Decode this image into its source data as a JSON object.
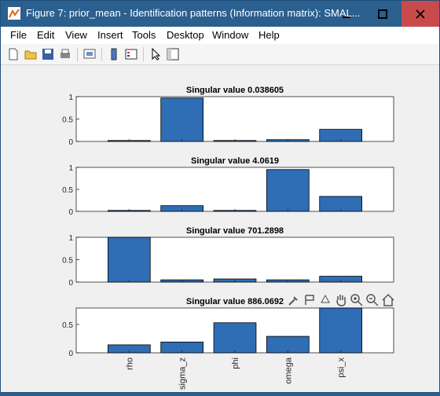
{
  "window": {
    "title": "Figure 7: prior_mean - Identification patterns (Information matrix): SMAL..."
  },
  "menu": [
    "File",
    "Edit",
    "View",
    "Insert",
    "Tools",
    "Desktop",
    "Window",
    "Help"
  ],
  "toolbar_icons": [
    "new-figure-icon",
    "open-file-icon",
    "save-icon",
    "print-icon",
    "link-plot-icon",
    "colorbar-icon",
    "legend-icon",
    "pointer-icon",
    "property-inspector-icon"
  ],
  "axes_toolbar_icons": [
    "brush-icon",
    "data-tips-icon",
    "rotate-icon",
    "pan-icon",
    "zoom-in-icon",
    "zoom-out-icon",
    "home-icon"
  ],
  "chart_data": [
    {
      "type": "bar",
      "title": "Singular value 0.038605",
      "categories": [
        "rho",
        "sigma_z",
        "phi",
        "omega",
        "psi_x"
      ],
      "values": [
        0.01,
        0.97,
        0.01,
        0.04,
        0.27
      ],
      "ylim": [
        0,
        1
      ],
      "yticks": [
        "0",
        "0.5",
        "1"
      ]
    },
    {
      "type": "bar",
      "title": "Singular value 4.0619",
      "categories": [
        "rho",
        "sigma_z",
        "phi",
        "omega",
        "psi_x"
      ],
      "values": [
        0.01,
        0.13,
        0.01,
        0.95,
        0.34
      ],
      "ylim": [
        0,
        1
      ],
      "yticks": [
        "0",
        "0.5",
        "1"
      ]
    },
    {
      "type": "bar",
      "title": "Singular value 701.2898",
      "categories": [
        "rho",
        "sigma_z",
        "phi",
        "omega",
        "psi_x"
      ],
      "values": [
        1.0,
        0.05,
        0.07,
        0.05,
        0.13
      ],
      "ylim": [
        0,
        1
      ],
      "yticks": [
        "0",
        "0.5",
        "1"
      ]
    },
    {
      "type": "bar",
      "title": "Singular value 886.0692",
      "categories": [
        "rho",
        "sigma_z",
        "phi",
        "omega",
        "psi_x"
      ],
      "values": [
        0.14,
        0.19,
        0.53,
        0.29,
        0.79
      ],
      "ylim": [
        0,
        0.79
      ],
      "yticks": [
        "0",
        "0.5"
      ]
    }
  ],
  "colors": {
    "bar": "#2f6db5",
    "titlebar": "#2b5f8e",
    "close": "#c84b4b"
  }
}
